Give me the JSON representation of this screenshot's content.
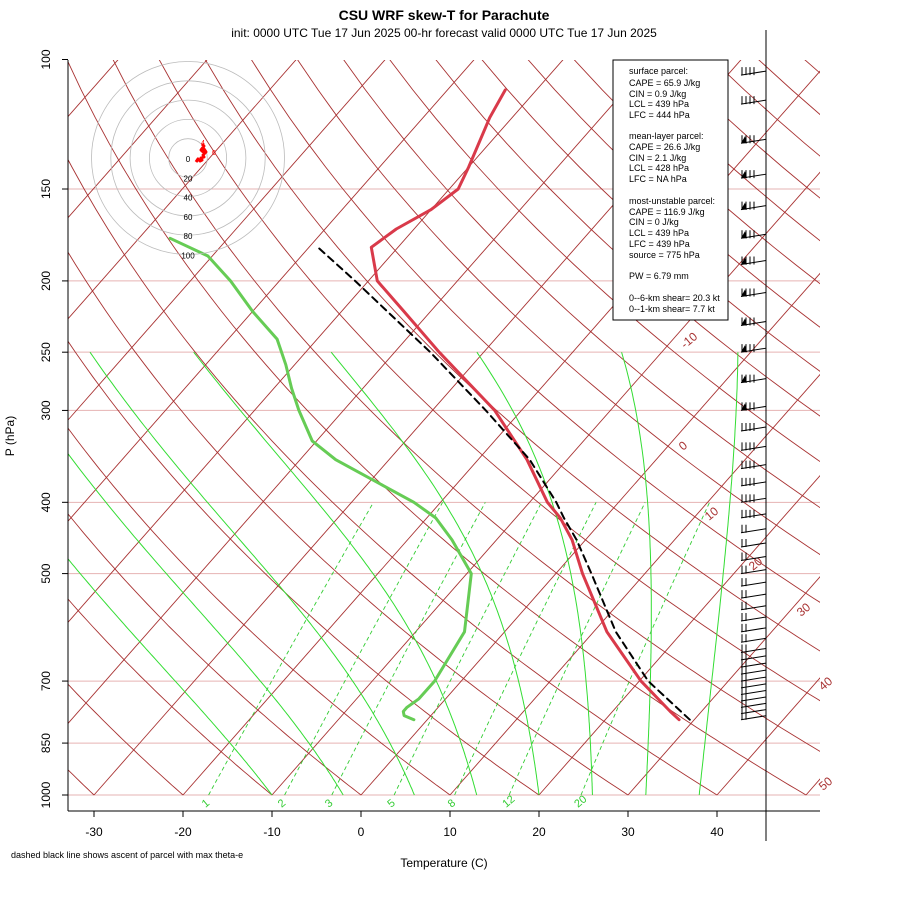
{
  "chart_data": {
    "type": "line",
    "title": "CSU WRF skew-T for Parachute",
    "subtitle": "init: 0000 UTC Tue 17 Jun 2025     00-hr forecast valid 0000 UTC Tue 17 Jun 2025",
    "xlabel": "Temperature (C)",
    "ylabel": "P (hPa)",
    "x_ticks": [
      -30,
      -20,
      -10,
      0,
      10,
      20,
      30,
      40
    ],
    "y_ticks": [
      100,
      150,
      200,
      250,
      300,
      400,
      500,
      700,
      850,
      1000
    ],
    "xlim": [
      -33,
      43
    ],
    "ylim": [
      1000,
      100
    ],
    "isotherm_labels": [
      -10,
      0,
      10,
      20,
      30,
      40,
      50
    ],
    "mixing_ratio_labels": [
      "1",
      "2",
      "3",
      "5",
      "8",
      "12",
      "20"
    ],
    "mixing_ratios": [
      1,
      2,
      3,
      5,
      8,
      12,
      20
    ],
    "series": [
      {
        "name": "temperature",
        "color": "#d93a4a",
        "points": [
          [
            790,
            28.3
          ],
          [
            770,
            26.5
          ],
          [
            700,
            20.2
          ],
          [
            600,
            11.5
          ],
          [
            500,
            3.0
          ],
          [
            450,
            -1.5
          ],
          [
            420,
            -5.0
          ],
          [
            400,
            -8.0
          ],
          [
            350,
            -14.5
          ],
          [
            300,
            -23.0
          ],
          [
            250,
            -35.0
          ],
          [
            220,
            -43.0
          ],
          [
            200,
            -49.0
          ],
          [
            180,
            -53.0
          ],
          [
            170,
            -52.0
          ],
          [
            160,
            -50.0
          ],
          [
            150,
            -49.0
          ],
          [
            140,
            -50.0
          ],
          [
            120,
            -52.5
          ],
          [
            110,
            -53.5
          ]
        ]
      },
      {
        "name": "dewpoint",
        "color": "#66cc55",
        "points": [
          [
            790,
            -1.5
          ],
          [
            780,
            -3.0
          ],
          [
            770,
            -3.5
          ],
          [
            760,
            -3.5
          ],
          [
            740,
            -3.0
          ],
          [
            700,
            -3.0
          ],
          [
            600,
            -4.5
          ],
          [
            500,
            -9.5
          ],
          [
            450,
            -15.0
          ],
          [
            420,
            -19.0
          ],
          [
            400,
            -23.0
          ],
          [
            380,
            -28.0
          ],
          [
            350,
            -36.0
          ],
          [
            330,
            -40.5
          ],
          [
            300,
            -45.0
          ],
          [
            280,
            -48.0
          ],
          [
            260,
            -51.0
          ],
          [
            240,
            -54.5
          ],
          [
            220,
            -60.0
          ],
          [
            200,
            -65.5
          ],
          [
            185,
            -70.5
          ],
          [
            175,
            -76.5
          ]
        ]
      },
      {
        "name": "parcel",
        "color": "#000000",
        "dashed": true,
        "points": [
          [
            790,
            29.5
          ],
          [
            700,
            21.0
          ],
          [
            600,
            12.5
          ],
          [
            500,
            4.0
          ],
          [
            450,
            -1.0
          ],
          [
            420,
            -4.6
          ],
          [
            400,
            -7.0
          ],
          [
            350,
            -14.2
          ],
          [
            300,
            -24.0
          ],
          [
            250,
            -36.0
          ],
          [
            200,
            -51.5
          ],
          [
            180,
            -59.0
          ]
        ]
      }
    ],
    "hodograph": {
      "ring_labels": [
        "0",
        "20",
        "40",
        "60",
        "80",
        "100"
      ],
      "trace_labels": [
        "4",
        "6"
      ],
      "color": "#ff0000"
    },
    "wind_levels_hpa": [
      790,
      775,
      760,
      745,
      730,
      715,
      700,
      685,
      670,
      655,
      640,
      620,
      600,
      580,
      560,
      540,
      520,
      500,
      480,
      460,
      440,
      420,
      400,
      380,
      360,
      340,
      320,
      300,
      275,
      250,
      230,
      210,
      190,
      175,
      160,
      145,
      130,
      115,
      105
    ]
  },
  "infobox": {
    "surface_header": "surface parcel:",
    "surface_cape": "CAPE = 65.9 J/kg",
    "surface_cin": "CIN = 0.9 J/kg",
    "surface_lcl": "LCL = 439 hPa",
    "surface_lfc": "LFC = 444 hPa",
    "mean_header": "mean-layer parcel:",
    "mean_cape": "CAPE = 26.6 J/kg",
    "mean_cin": "CIN = 2.1 J/kg",
    "mean_lcl": "LCL = 428 hPa",
    "mean_lfc": "LFC = NA hPa",
    "mu_header": "most-unstable parcel:",
    "mu_cape": "CAPE = 116.9 J/kg",
    "mu_cin": "CIN = 0 J/kg",
    "mu_lcl": "LCL = 439 hPa",
    "mu_lfc": "LFC = 439 hPa",
    "mu_source": "source = 775 hPa",
    "pw": "PW =  6.79 mm",
    "shear06": "0--6-km shear= 20.3 kt",
    "shear01": "0--1-km shear= 7.7 kt"
  },
  "footnote": "dashed black line shows ascent of parcel with max theta-e",
  "colors": {
    "isotherm": "#a83232",
    "isobar": "#e6b3b3",
    "dry_adiabat": "#a83232",
    "moist_adiabat": "#33dd33",
    "mixing_ratio": "#33cc33"
  }
}
